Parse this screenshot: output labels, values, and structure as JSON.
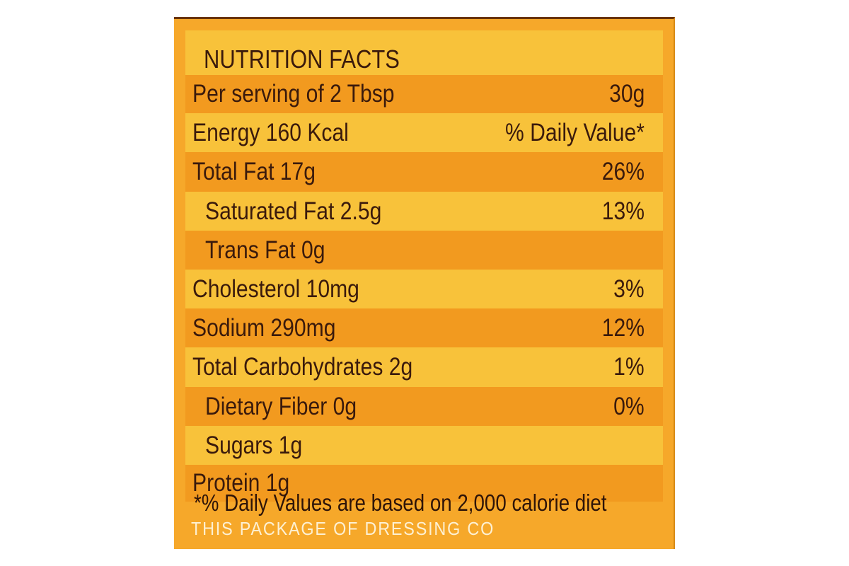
{
  "label": {
    "title": "NUTRITION FACTS",
    "serving": {
      "label": "Per serving of 2 Tbsp",
      "value": "30g"
    },
    "energy": {
      "label": "Energy 160 Kcal",
      "value": "% Daily Value*"
    },
    "rows": [
      {
        "label": "Total Fat 17g",
        "value": "26%"
      },
      {
        "label": "Saturated Fat 2.5g",
        "value": "13%"
      },
      {
        "label": "Trans Fat 0g",
        "value": ""
      },
      {
        "label": "Cholesterol 10mg",
        "value": "3%"
      },
      {
        "label": "Sodium 290mg",
        "value": "12%"
      },
      {
        "label": "Total Carbohydrates 2g",
        "value": "1%"
      },
      {
        "label": "Dietary Fiber 0g",
        "value": "0%"
      },
      {
        "label": "Sugars 1g",
        "value": ""
      },
      {
        "label": "Protein 1g",
        "value": ""
      }
    ],
    "footnote": "*% Daily Values are based on 2,000 calorie diet",
    "package_text": "THIS PACKAGE OF DRESSING CO"
  },
  "colors": {
    "panel": "#f6a82a",
    "band_dark": "#f29a1f",
    "band_light": "#f8c23a",
    "text": "#3a1a0c"
  }
}
